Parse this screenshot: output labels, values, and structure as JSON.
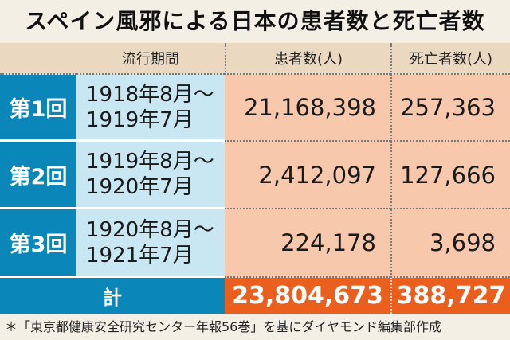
{
  "title": "スペイン風邪による日本の患者数と死亡者数",
  "headers": {
    "period": "流行期間",
    "patients": "患者数(人)",
    "deaths": "死亡者数(人)"
  },
  "rows": [
    {
      "label": "第1回",
      "period_start": "1918年8月～",
      "period_end": "1919年7月",
      "patients": "21,168,398",
      "deaths": "257,363"
    },
    {
      "label": "第2回",
      "period_start": "1919年8月～",
      "period_end": "1920年7月",
      "patients": "2,412,097",
      "deaths": "127,666"
    },
    {
      "label": "第3回",
      "period_start": "1920年8月～",
      "period_end": "1921年7月",
      "patients": "224,178",
      "deaths": "3,698"
    }
  ],
  "total": {
    "label": "計",
    "patients": "23,804,673",
    "deaths": "388,727"
  },
  "note": "＊「東京都健康安全研究センター年報56巻」を基にダイヤモンド編集部作成",
  "colors": {
    "row_label_bg": "#0a86b8",
    "period_bg": "#c9e6f3",
    "value_bg": "#f8c8ad",
    "total_bg": "#ea5f1e",
    "header_bg": "#ead8c0"
  }
}
